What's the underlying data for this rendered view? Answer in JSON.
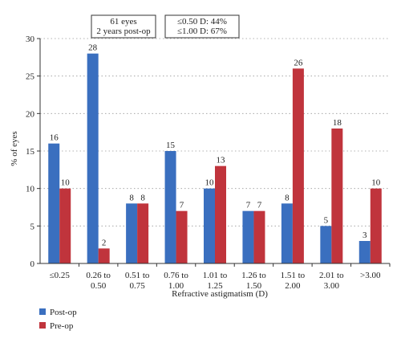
{
  "chart_data": {
    "type": "bar",
    "categories": [
      [
        "≤0.25"
      ],
      [
        "0.26 to",
        "0.50"
      ],
      [
        "0.51 to",
        "0.75"
      ],
      [
        "0.76 to",
        "1.00"
      ],
      [
        "1.01 to",
        "1.25"
      ],
      [
        "1.26 to",
        "1.50"
      ],
      [
        "1.51 to",
        "2.00"
      ],
      [
        "2.01 to",
        "3.00"
      ],
      [
        ">3.00"
      ]
    ],
    "series": [
      {
        "name": "Post-op",
        "color": "#3a6fbf",
        "values": [
          16,
          28,
          8,
          15,
          10,
          7,
          8,
          5,
          3
        ]
      },
      {
        "name": "Pre-op",
        "color": "#c0343c",
        "values": [
          10,
          2,
          8,
          7,
          13,
          7,
          26,
          18,
          10
        ]
      }
    ],
    "xlabel": "Refractive astigmatism (D)",
    "ylabel": "% of eyes",
    "ylim": [
      0,
      30
    ],
    "yticks": [
      0,
      5,
      10,
      15,
      20,
      25,
      30
    ],
    "grid": "horizontal dotted",
    "legend_position": "bottom-left",
    "annotations": [
      {
        "lines": [
          "61 eyes",
          "2 years post-op"
        ]
      },
      {
        "lines": [
          "≤0.50 D: 44%",
          "≤1.00 D: 67%"
        ]
      }
    ]
  }
}
